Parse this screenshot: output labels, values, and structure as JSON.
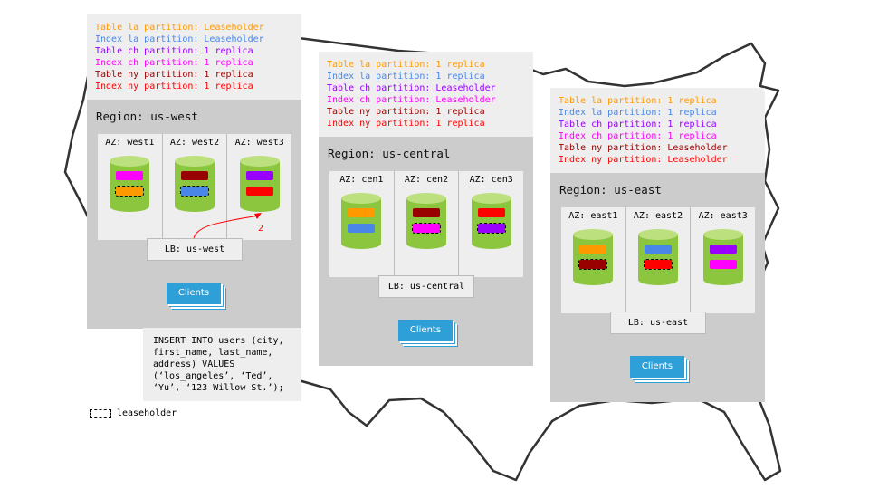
{
  "colors": {
    "table_la": "#ff9900",
    "index_la": "#4a86e8",
    "table_ch": "#9900ff",
    "index_ch": "#ff00ff",
    "table_ny": "#990000",
    "index_ny": "#ff0000",
    "cylinder": "#8cc63f",
    "clients": "#2f9fd8"
  },
  "regions": [
    {
      "title": "Region: us-west",
      "partitions": [
        {
          "text": "Table la partition: Leaseholder",
          "color": "#ff9900"
        },
        {
          "text": "Index la partition: Leaseholder",
          "color": "#4a86e8"
        },
        {
          "text": "Table ch partition: 1 replica",
          "color": "#9900ff"
        },
        {
          "text": "Index ch partition: 1 replica",
          "color": "#ff00ff"
        },
        {
          "text": "Table ny partition: 1 replica",
          "color": "#990000"
        },
        {
          "text": "Index ny partition: 1 replica",
          "color": "#ff0000"
        }
      ],
      "azs": [
        {
          "label": "AZ: west1",
          "slots": [
            {
              "color": "#ff00ff",
              "leaseholder": false
            },
            {
              "color": "#ff9900",
              "leaseholder": true
            }
          ]
        },
        {
          "label": "AZ: west2",
          "slots": [
            {
              "color": "#990000",
              "leaseholder": false
            },
            {
              "color": "#4a86e8",
              "leaseholder": true
            }
          ]
        },
        {
          "label": "AZ: west3",
          "slots": [
            {
              "color": "#9900ff",
              "leaseholder": false
            },
            {
              "color": "#ff0000",
              "leaseholder": false
            }
          ]
        }
      ],
      "lb": "LB: us-west",
      "clients": "Clients",
      "arrow_label": "2"
    },
    {
      "title": "Region: us-central",
      "partitions": [
        {
          "text": "Table la partition: 1 replica",
          "color": "#ff9900"
        },
        {
          "text": "Index la partition: 1 replica",
          "color": "#4a86e8"
        },
        {
          "text": "Table ch partition: Leaseholder",
          "color": "#9900ff"
        },
        {
          "text": "Index ch partition: Leaseholder",
          "color": "#ff00ff"
        },
        {
          "text": "Table ny partition: 1 replica",
          "color": "#990000"
        },
        {
          "text": "Index ny partition: 1 replica",
          "color": "#ff0000"
        }
      ],
      "azs": [
        {
          "label": "AZ: cen1",
          "slots": [
            {
              "color": "#ff9900",
              "leaseholder": false
            },
            {
              "color": "#4a86e8",
              "leaseholder": false
            }
          ]
        },
        {
          "label": "AZ: cen2",
          "slots": [
            {
              "color": "#990000",
              "leaseholder": false
            },
            {
              "color": "#ff00ff",
              "leaseholder": true
            }
          ]
        },
        {
          "label": "AZ: cen3",
          "slots": [
            {
              "color": "#ff0000",
              "leaseholder": false
            },
            {
              "color": "#9900ff",
              "leaseholder": true
            }
          ]
        }
      ],
      "lb": "LB: us-central",
      "clients": "Clients"
    },
    {
      "title": "Region: us-east",
      "partitions": [
        {
          "text": "Table la partition: 1 replica",
          "color": "#ff9900"
        },
        {
          "text": "Index la partition: 1 replica",
          "color": "#4a86e8"
        },
        {
          "text": "Table ch partition: 1 replica",
          "color": "#9900ff"
        },
        {
          "text": "Index ch partition: 1 replica",
          "color": "#ff00ff"
        },
        {
          "text": "Table ny partition: Leaseholder",
          "color": "#990000"
        },
        {
          "text": "Index ny partition: Leaseholder",
          "color": "#ff0000"
        }
      ],
      "azs": [
        {
          "label": "AZ: east1",
          "slots": [
            {
              "color": "#ff9900",
              "leaseholder": false
            },
            {
              "color": "#990000",
              "leaseholder": true
            }
          ]
        },
        {
          "label": "AZ: east2",
          "slots": [
            {
              "color": "#4a86e8",
              "leaseholder": false
            },
            {
              "color": "#ff0000",
              "leaseholder": true
            }
          ]
        },
        {
          "label": "AZ: east3",
          "slots": [
            {
              "color": "#9900ff",
              "leaseholder": false
            },
            {
              "color": "#ff00ff",
              "leaseholder": false
            }
          ]
        }
      ],
      "lb": "LB: us-east",
      "clients": "Clients"
    }
  ],
  "sql": [
    "INSERT INTO users (city,",
    "first_name, last_name,",
    "address) VALUES",
    "(‘los_angeles’, ‘Ted’,",
    "‘Yu’, ‘123 Willow St.’);"
  ],
  "legend": {
    "label": "leaseholder"
  }
}
